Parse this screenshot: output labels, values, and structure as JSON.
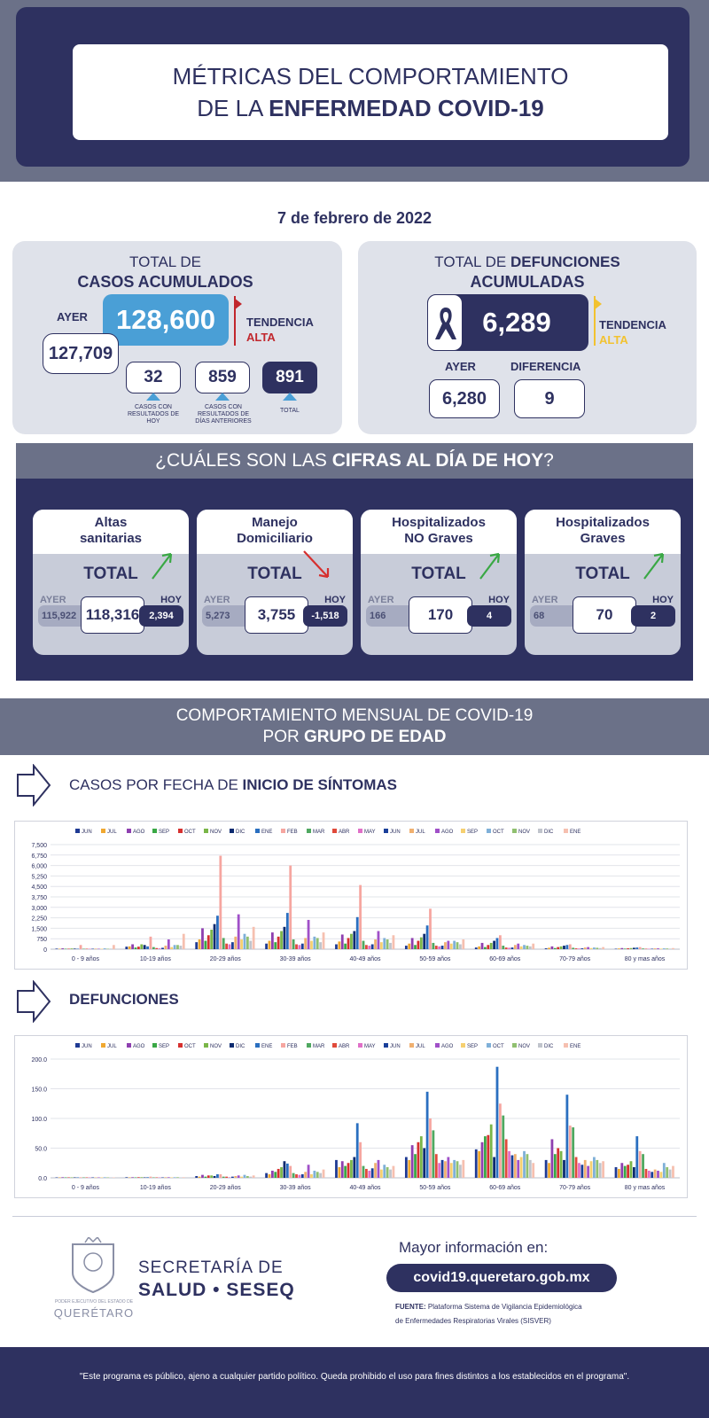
{
  "header": {
    "line1": "MÉTRICAS DEL COMPORTAMIENTO",
    "line2_prefix": "DE LA ",
    "line2_bold": "ENFERMEDAD COVID-19"
  },
  "date": "7 de febrero de 2022",
  "casos": {
    "title1": "TOTAL DE",
    "title2": "CASOS ACUMULADOS",
    "ayer_label": "AYER",
    "ayer_value": "127,709",
    "total": "128,600",
    "tendencia_label": "TENDENCIA",
    "tendencia_value": "ALTA",
    "hoy": {
      "value": "32",
      "label": "CASOS CON RESULTADOS DE HOY"
    },
    "anteriores": {
      "value": "859",
      "label": "CASOS CON RESULTADOS DE DÍAS ANTERIORES"
    },
    "total_nuevos": {
      "value": "891",
      "label": "TOTAL"
    },
    "colors": {
      "box": "#4a9fd6",
      "trend": "#c1272d"
    }
  },
  "defunciones": {
    "title_prefix": "TOTAL DE ",
    "title_bold": "DEFUNCIONES",
    "title2": "ACUMULADAS",
    "total": "6,289",
    "tendencia_label": "TENDENCIA",
    "tendencia_value": "ALTA",
    "ayer_label": "AYER",
    "ayer_value": "6,280",
    "dif_label": "DIFERENCIA",
    "dif_value": "9",
    "icon": "ribbon-icon",
    "colors": {
      "trend": "#f2c230"
    }
  },
  "cifras": {
    "title_prefix": "¿CUÁLES SON LAS ",
    "title_bold": "CIFRAS AL DÍA DE HOY",
    "title_suffix": "?",
    "cards": [
      {
        "title1": "Altas",
        "title2": "sanitarias",
        "total": "TOTAL",
        "ayer_label": "AYER",
        "hoy_label": "HOY",
        "ayer": "115,922",
        "current": "118,316",
        "diff": "2,394",
        "trend": "up"
      },
      {
        "title1": "Manejo",
        "title2": "Domiciliario",
        "total": "TOTAL",
        "ayer_label": "AYER",
        "hoy_label": "HOY",
        "ayer": "5,273",
        "current": "3,755",
        "diff": "-1,518",
        "trend": "down"
      },
      {
        "title1": "Hospitalizados",
        "title2": "NO Graves",
        "total": "TOTAL",
        "ayer_label": "AYER",
        "hoy_label": "HOY",
        "ayer": "166",
        "current": "170",
        "diff": "4",
        "trend": "up"
      },
      {
        "title1": "Hospitalizados",
        "title2": "Graves",
        "total": "TOTAL",
        "ayer_label": "AYER",
        "hoy_label": "HOY",
        "ayer": "68",
        "current": "70",
        "diff": "2",
        "trend": "up"
      }
    ]
  },
  "mensual": {
    "line1": "COMPORTAMIENTO MENSUAL DE COVID-19",
    "line2_prefix": "POR ",
    "line2_bold": "GRUPO DE EDAD"
  },
  "casos_section": {
    "title_prefix": "CASOS POR FECHA DE ",
    "title_bold": "INICIO  DE SÍNTOMAS"
  },
  "def_section": {
    "title": "DEFUNCIONES"
  },
  "chart_data": [
    {
      "type": "bar",
      "categories": [
        "0 - 9 años",
        "10-19 años",
        "20-29 años",
        "30-39 años",
        "40-49 años",
        "50-59 años",
        "60-69 años",
        "70-79 años",
        "80 y mas años"
      ],
      "legend": [
        "JUN",
        "JUL",
        "AGO",
        "SEP",
        "OCT",
        "NOV",
        "DIC",
        "ENE",
        "FEB",
        "MAR",
        "ABR",
        "MAY",
        "JUN",
        "JUL",
        "AGO",
        "SEP",
        "OCT",
        "NOV",
        "DIC",
        "ENE"
      ],
      "colors": [
        "#1f3a93",
        "#f0a830",
        "#8e3fb0",
        "#3aa845",
        "#d6302f",
        "#7ab648",
        "#0b2a6f",
        "#2a6fc0",
        "#f6a6a0",
        "#4fa860",
        "#e04a3a",
        "#e070c8",
        "#1a3f9a",
        "#f0b070",
        "#a050c8",
        "#f6d070",
        "#7fb0d8",
        "#90c070",
        "#c0c4cc",
        "#f6c0b0"
      ],
      "ylim": [
        0,
        7500
      ],
      "yticks": [
        "0",
        "750",
        "1,500",
        "2,250",
        "3,000",
        "3,750",
        "4,500",
        "5,250",
        "6,000",
        "6,750",
        "7,500"
      ],
      "grid": true,
      "legend_position": "top",
      "series_values": [
        [
          40,
          30,
          60,
          20,
          30,
          50,
          40,
          30,
          300,
          20,
          10,
          10,
          20,
          40,
          30,
          20,
          60,
          30,
          40,
          300
        ],
        [
          180,
          200,
          350,
          120,
          180,
          350,
          300,
          200,
          900,
          150,
          80,
          60,
          100,
          250,
          700,
          150,
          300,
          300,
          250,
          1100
        ],
        [
          500,
          700,
          1500,
          600,
          1000,
          1400,
          1800,
          2400,
          6700,
          800,
          400,
          350,
          500,
          900,
          2500,
          700,
          1100,
          900,
          600,
          1600
        ],
        [
          400,
          600,
          1200,
          500,
          900,
          1300,
          1600,
          2600,
          6000,
          700,
          350,
          300,
          400,
          800,
          2100,
          600,
          900,
          800,
          500,
          1200
        ],
        [
          350,
          550,
          1050,
          400,
          800,
          1100,
          1300,
          2300,
          4600,
          600,
          300,
          250,
          350,
          700,
          1300,
          500,
          800,
          700,
          450,
          1000
        ],
        [
          250,
          400,
          800,
          300,
          600,
          850,
          1100,
          1700,
          2900,
          450,
          250,
          200,
          250,
          500,
          600,
          400,
          600,
          500,
          350,
          700
        ],
        [
          120,
          200,
          450,
          150,
          300,
          450,
          600,
          800,
          1000,
          250,
          120,
          100,
          120,
          300,
          400,
          200,
          300,
          250,
          200,
          400
        ],
        [
          60,
          100,
          200,
          80,
          150,
          200,
          250,
          300,
          350,
          100,
          60,
          50,
          60,
          120,
          150,
          80,
          120,
          100,
          80,
          150
        ],
        [
          30,
          50,
          80,
          40,
          60,
          80,
          100,
          120,
          150,
          50,
          30,
          20,
          30,
          60,
          60,
          40,
          60,
          50,
          40,
          80
        ]
      ]
    },
    {
      "type": "bar",
      "categories": [
        "0 - 9 años",
        "10-19 años",
        "20-29 años",
        "30-39 años",
        "40-49 años",
        "50-59 años",
        "60-69 años",
        "70-79 años",
        "80 y mas años"
      ],
      "legend": [
        "JUN",
        "JUL",
        "AGO",
        "SEP",
        "OCT",
        "NOV",
        "DIC",
        "ENE",
        "FEB",
        "MAR",
        "ABR",
        "MAY",
        "JUN",
        "JUL",
        "AGO",
        "SEP",
        "OCT",
        "NOV",
        "DIC",
        "ENE"
      ],
      "colors": [
        "#1f3a93",
        "#f0a830",
        "#8e3fb0",
        "#3aa845",
        "#d6302f",
        "#7ab648",
        "#0b2a6f",
        "#2a6fc0",
        "#f6a6a0",
        "#4fa860",
        "#e04a3a",
        "#e070c8",
        "#1a3f9a",
        "#f0b070",
        "#a050c8",
        "#f6d070",
        "#7fb0d8",
        "#90c070",
        "#c0c4cc",
        "#f6c0b0"
      ],
      "ylim": [
        0,
        200
      ],
      "yticks": [
        "0.0",
        "50.0",
        "100.0",
        "150.0",
        "200.0"
      ],
      "grid": true,
      "legend_position": "top",
      "series_values": [
        [
          0,
          0,
          1,
          0,
          0,
          0,
          0,
          0,
          1,
          0,
          0,
          0,
          0,
          0,
          0,
          0,
          1,
          0,
          0,
          0
        ],
        [
          1,
          0,
          1,
          0,
          1,
          1,
          0,
          1,
          2,
          0,
          0,
          0,
          0,
          1,
          1,
          0,
          1,
          1,
          0,
          1
        ],
        [
          3,
          2,
          5,
          2,
          4,
          4,
          3,
          6,
          6,
          2,
          2,
          1,
          2,
          3,
          4,
          2,
          5,
          3,
          2,
          4
        ],
        [
          8,
          6,
          12,
          10,
          15,
          18,
          28,
          24,
          20,
          8,
          6,
          5,
          6,
          10,
          22,
          6,
          12,
          10,
          8,
          14
        ],
        [
          30,
          18,
          28,
          20,
          25,
          30,
          35,
          92,
          60,
          20,
          15,
          12,
          16,
          25,
          30,
          14,
          22,
          18,
          14,
          20
        ],
        [
          35,
          30,
          55,
          40,
          60,
          70,
          50,
          145,
          100,
          80,
          40,
          25,
          30,
          28,
          35,
          25,
          30,
          28,
          22,
          30
        ],
        [
          48,
          45,
          60,
          70,
          72,
          90,
          35,
          187,
          125,
          105,
          65,
          45,
          38,
          40,
          30,
          35,
          45,
          40,
          30,
          25
        ],
        [
          30,
          25,
          65,
          40,
          50,
          45,
          30,
          140,
          88,
          85,
          35,
          25,
          22,
          30,
          20,
          28,
          35,
          30,
          25,
          28
        ],
        [
          18,
          15,
          25,
          20,
          22,
          28,
          18,
          70,
          45,
          40,
          15,
          12,
          10,
          14,
          12,
          10,
          25,
          18,
          14,
          20
        ]
      ]
    }
  ],
  "footer": {
    "org_line1": "SECRETARÍA DE",
    "org_line2": "SALUD • SESEQ",
    "seal_line1": "PODER EJECUTIVO DEL ESTADO DE",
    "seal_line2": "QUERÉTARO",
    "mas_info": "Mayor información en:",
    "url": "covid19.queretaro.gob.mx",
    "fuente_label": "FUENTE:",
    "fuente_text": "Plataforma Sistema  de Vigilancia Epidemiológica",
    "fuente_text2": "de Enfermedades Respiratorias Virales (SISVER)",
    "disclaimer": "\"Este programa es público, ajeno a cualquier partido político. Queda prohibido el uso para fines distintos a los establecidos en el programa\"."
  }
}
